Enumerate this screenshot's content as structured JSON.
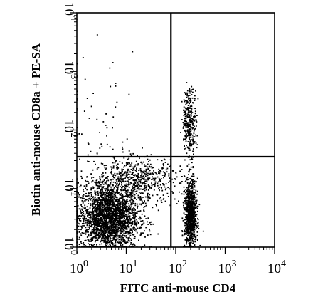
{
  "chart_data": {
    "type": "scatter",
    "title": "",
    "xlabel": "FITC anti-mouse CD4",
    "ylabel": "Biotin anti-mouse CD8a + PE-SA",
    "x_scale": "log",
    "y_scale": "log",
    "xlim": [
      1,
      10000
    ],
    "ylim": [
      1,
      10000
    ],
    "x_ticks": [
      {
        "value": 1,
        "base": "10",
        "exp": "0"
      },
      {
        "value": 10,
        "base": "10",
        "exp": "1"
      },
      {
        "value": 100,
        "base": "10",
        "exp": "2"
      },
      {
        "value": 1000,
        "base": "10",
        "exp": "3"
      },
      {
        "value": 10000,
        "base": "10",
        "exp": "4"
      }
    ],
    "y_ticks": [
      {
        "value": 1,
        "base": "10",
        "exp": "0"
      },
      {
        "value": 10,
        "base": "10",
        "exp": "1"
      },
      {
        "value": 100,
        "base": "10",
        "exp": "2"
      },
      {
        "value": 1000,
        "base": "10",
        "exp": "3"
      },
      {
        "value": 10000,
        "base": "10",
        "exp": "4"
      }
    ],
    "quadrant_gates": {
      "x": 80,
      "y": 35
    },
    "grid": false,
    "point_color": "#000000",
    "populations": [
      {
        "center": [
          4.5,
          3.2
        ],
        "spread_log": [
          0.3,
          0.28
        ],
        "count": 2600
      },
      {
        "center": [
          200,
          3.5
        ],
        "spread_log": [
          0.06,
          0.3
        ],
        "count": 1000
      },
      {
        "center": [
          190,
          140
        ],
        "spread_log": [
          0.07,
          0.28
        ],
        "count": 320
      },
      {
        "center": [
          15,
          14
        ],
        "spread_log": [
          0.45,
          0.2
        ],
        "count": 650
      },
      {
        "center": [
          3,
          150
        ],
        "spread_log": [
          0.35,
          0.55
        ],
        "count": 55
      }
    ]
  }
}
